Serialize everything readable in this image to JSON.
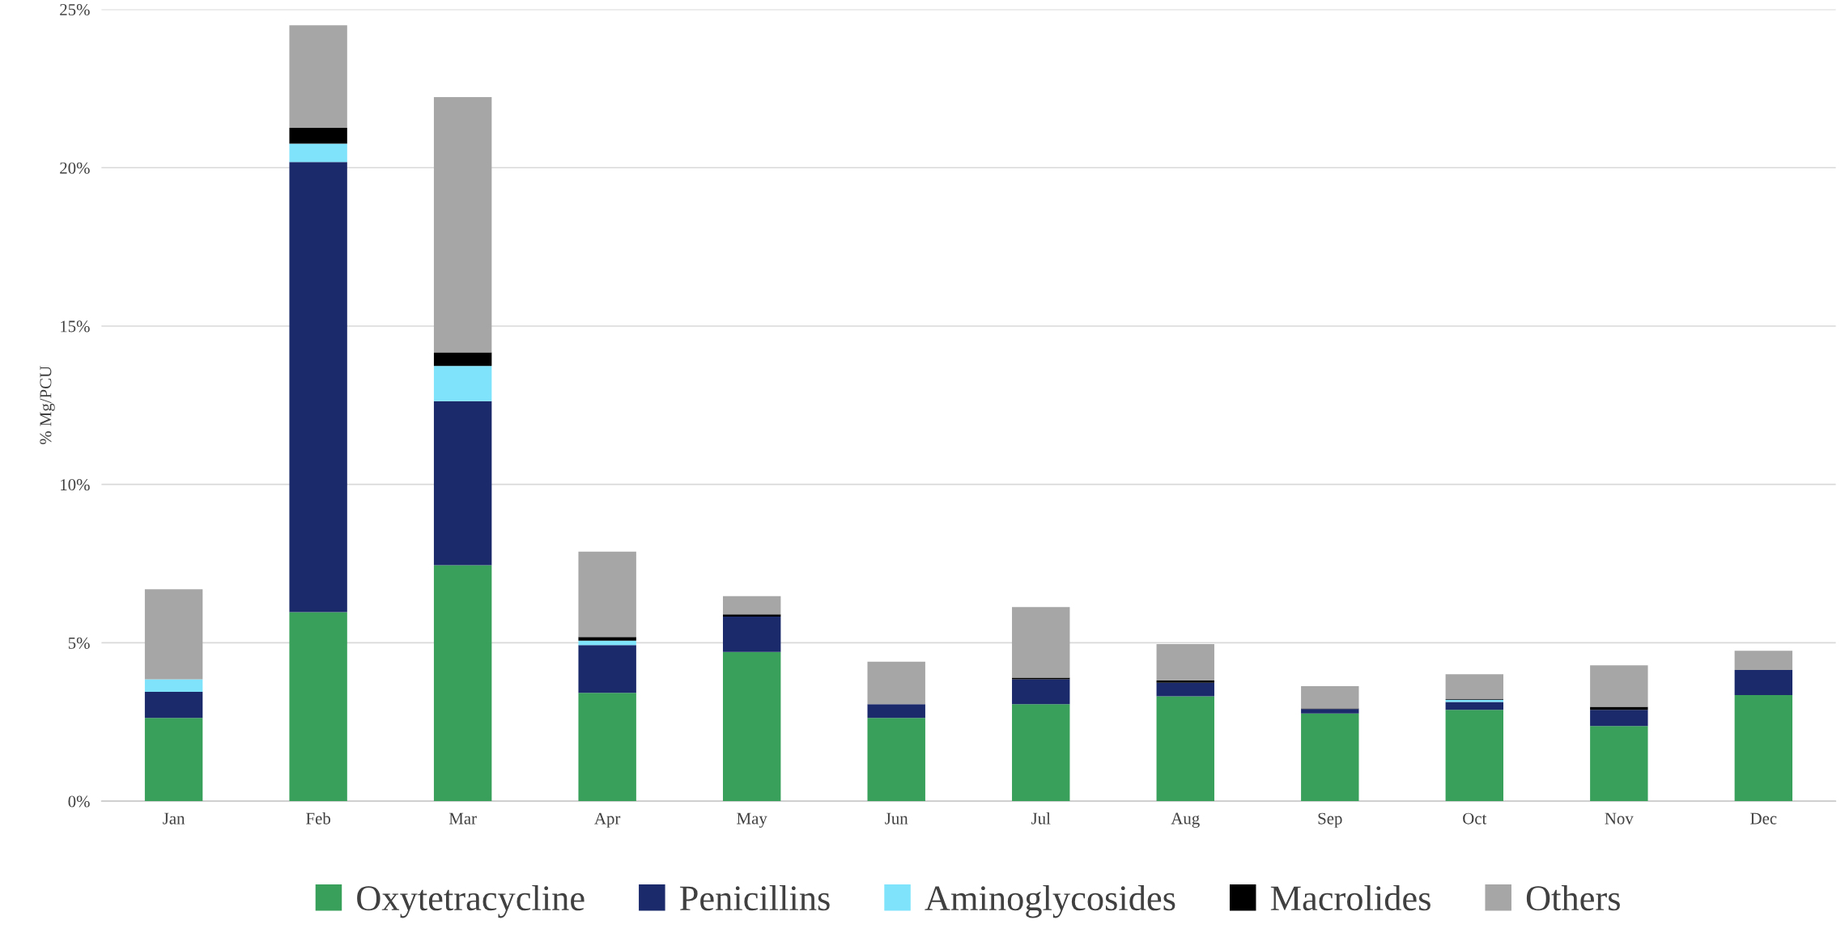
{
  "chart_data": {
    "type": "bar",
    "stacked": true,
    "ylabel": "% Mg/PCU",
    "categories": [
      "Jan",
      "Feb",
      "Mar",
      "Apr",
      "May",
      "Jun",
      "Jul",
      "Aug",
      "Sep",
      "Oct",
      "Nov",
      "Dec"
    ],
    "series": [
      {
        "name": "Oxytetracycline",
        "color": "#38a05a",
        "values": [
          2.63,
          5.97,
          7.45,
          3.42,
          4.71,
          2.63,
          3.06,
          3.31,
          2.77,
          2.88,
          2.37,
          3.35
        ]
      },
      {
        "name": "Penicillins",
        "color": "#1b2a6b",
        "values": [
          0.82,
          14.21,
          5.18,
          1.51,
          1.12,
          0.43,
          0.79,
          0.43,
          0.14,
          0.25,
          0.51,
          0.79
        ]
      },
      {
        "name": "Aminoglycosides",
        "color": "#7fe4fb",
        "values": [
          0.4,
          0.58,
          1.11,
          0.14,
          0,
          0,
          null,
          0,
          0,
          0.07,
          null,
          0
        ]
      },
      {
        "name": "Macrolides",
        "color": "#000000",
        "values": [
          0,
          0.5,
          0.43,
          0.11,
          0.07,
          null,
          0.05,
          0.07,
          0.02,
          0.02,
          0.1,
          0
        ]
      },
      {
        "name": "Others",
        "color": "#a6a6a6",
        "values": [
          2.84,
          3.24,
          8.06,
          2.7,
          0.57,
          1.34,
          2.23,
          1.15,
          0.7,
          0.79,
          1.31,
          0.61
        ]
      }
    ],
    "ylim": [
      0,
      25
    ],
    "yticks": [
      {
        "value": 0,
        "label": "0%"
      },
      {
        "value": 5,
        "label": "5%"
      },
      {
        "value": 10,
        "label": "10%"
      },
      {
        "value": 15,
        "label": "15%"
      },
      {
        "value": 20,
        "label": "20%"
      },
      {
        "value": 25,
        "label": "25%"
      }
    ],
    "grid": "y",
    "legend": "bottom"
  }
}
